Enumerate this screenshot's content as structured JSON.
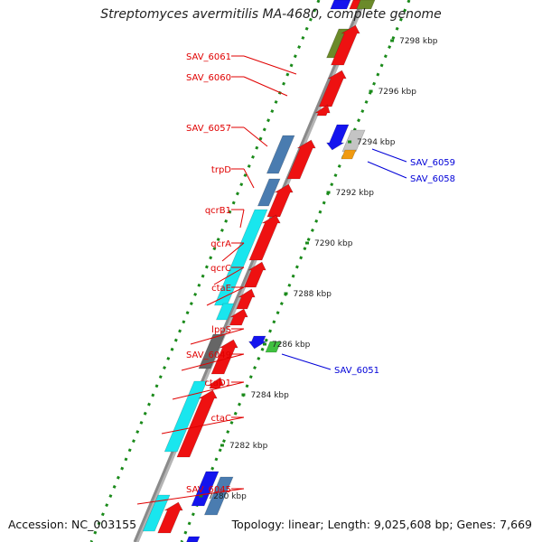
{
  "title": "Streptomyces avermitilis MA-4680, complete genome",
  "footer": {
    "accession": "Accession: NC_003155",
    "topology": "Topology: linear; Length: 9,025,608 bp; Genes: 7,669"
  },
  "colors": {
    "backbone": "#8a8a8a",
    "tick": "#1a8a1a",
    "left_label": "#e00000",
    "right_label": "#0000d8",
    "red_gene": "#ee1111",
    "steel_gene": "#4a7cb0",
    "cyan_gene": "#19e6ee",
    "blue_gene": "#1414ee",
    "olive_gene": "#6b8a2a",
    "gray_gene": "#666666",
    "green_gene": "#40c040",
    "orange_gene": "#f09a10",
    "light_gray_gene": "#c4c4c4"
  },
  "scale_labels": [
    {
      "text": "7298 kbp",
      "kbp": 7298
    },
    {
      "text": "7296 kbp",
      "kbp": 7296
    },
    {
      "text": "7294 kbp",
      "kbp": 7294
    },
    {
      "text": "7292 kbp",
      "kbp": 7292
    },
    {
      "text": "7290 kbp",
      "kbp": 7290
    },
    {
      "text": "7288 kbp",
      "kbp": 7288
    },
    {
      "text": "7286 kbp",
      "kbp": 7286
    },
    {
      "text": "7284 kbp",
      "kbp": 7284
    },
    {
      "text": "7282 kbp",
      "kbp": 7282
    },
    {
      "text": "7280 kbp",
      "kbp": 7280
    }
  ],
  "left_labels": [
    "SAV_6061",
    "SAV_6060",
    "SAV_6057",
    "trpD",
    "qcrB1",
    "qcrA",
    "qcrC",
    "ctaE",
    "lppS",
    "SAV_6049",
    "ctaD1",
    "ctaC",
    "SAV_6045"
  ],
  "right_labels": [
    "SAV_6059",
    "SAV_6058",
    "SAV_6051"
  ]
}
